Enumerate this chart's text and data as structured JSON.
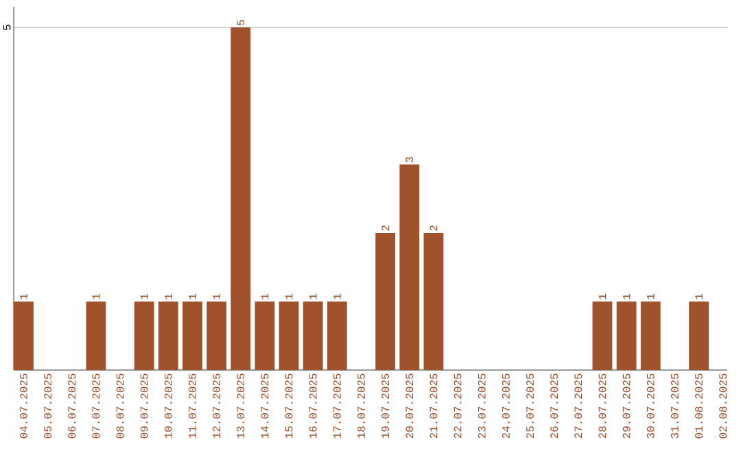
{
  "chart_data": {
    "type": "bar",
    "color": "#a0522d",
    "grid": "y",
    "categories": [
      "04.07.2025",
      "05.07.2025",
      "06.07.2025",
      "07.07.2025",
      "08.07.2025",
      "09.07.2025",
      "10.07.2025",
      "11.07.2025",
      "12.07.2025",
      "13.07.2025",
      "14.07.2025",
      "15.07.2025",
      "16.07.2025",
      "17.07.2025",
      "18.07.2025",
      "19.07.2025",
      "20.07.2025",
      "21.07.2025",
      "22.07.2025",
      "23.07.2025",
      "24.07.2025",
      "25.07.2025",
      "26.07.2025",
      "27.07.2025",
      "28.07.2025",
      "29.07.2025",
      "30.07.2025",
      "31.07.2025",
      "01.08.2025",
      "02.08.2025"
    ],
    "values": [
      1,
      0,
      0,
      1,
      0,
      1,
      1,
      1,
      1,
      5,
      1,
      1,
      1,
      1,
      0,
      2,
      3,
      2,
      0,
      0,
      0,
      0,
      0,
      0,
      1,
      1,
      1,
      0,
      1,
      0
    ],
    "value_labels": [
      "1",
      null,
      null,
      "1",
      null,
      "1",
      "1",
      "1",
      "1",
      "5",
      "1",
      "1",
      "1",
      "1",
      null,
      "2",
      "3",
      "2",
      null,
      null,
      null,
      null,
      null,
      null,
      "1",
      "1",
      "1",
      null,
      "1",
      null
    ],
    "ylim": [
      0,
      5.3
    ],
    "yticks": [
      5
    ]
  }
}
